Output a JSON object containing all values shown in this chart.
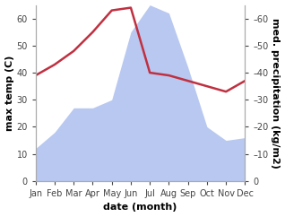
{
  "months": [
    "Jan",
    "Feb",
    "Mar",
    "Apr",
    "May",
    "Jun",
    "Jul",
    "Aug",
    "Sep",
    "Oct",
    "Nov",
    "Dec"
  ],
  "temperature": [
    39,
    43,
    48,
    55,
    63,
    64,
    40,
    39,
    37,
    35,
    33,
    37
  ],
  "precipitation": [
    12,
    18,
    27,
    27,
    30,
    55,
    65,
    62,
    42,
    20,
    15,
    16
  ],
  "temp_color": "#c03040",
  "precip_color": "#b8c8f0",
  "ylim_left": [
    0,
    65
  ],
  "ylim_right": [
    0,
    65
  ],
  "yticks_left": [
    0,
    10,
    20,
    30,
    40,
    50,
    60
  ],
  "yticks_right": [
    0,
    10,
    20,
    30,
    40,
    50,
    60
  ],
  "xlabel": "date (month)",
  "ylabel_left": "max temp (C)",
  "ylabel_right": "med. precipitation (kg/m2)",
  "line_width": 1.8,
  "background_color": "#ffffff",
  "spine_color": "#aaaaaa",
  "tick_color": "#444444",
  "label_fontsize": 8,
  "tick_fontsize": 7,
  "ylabel_fontsize": 8
}
